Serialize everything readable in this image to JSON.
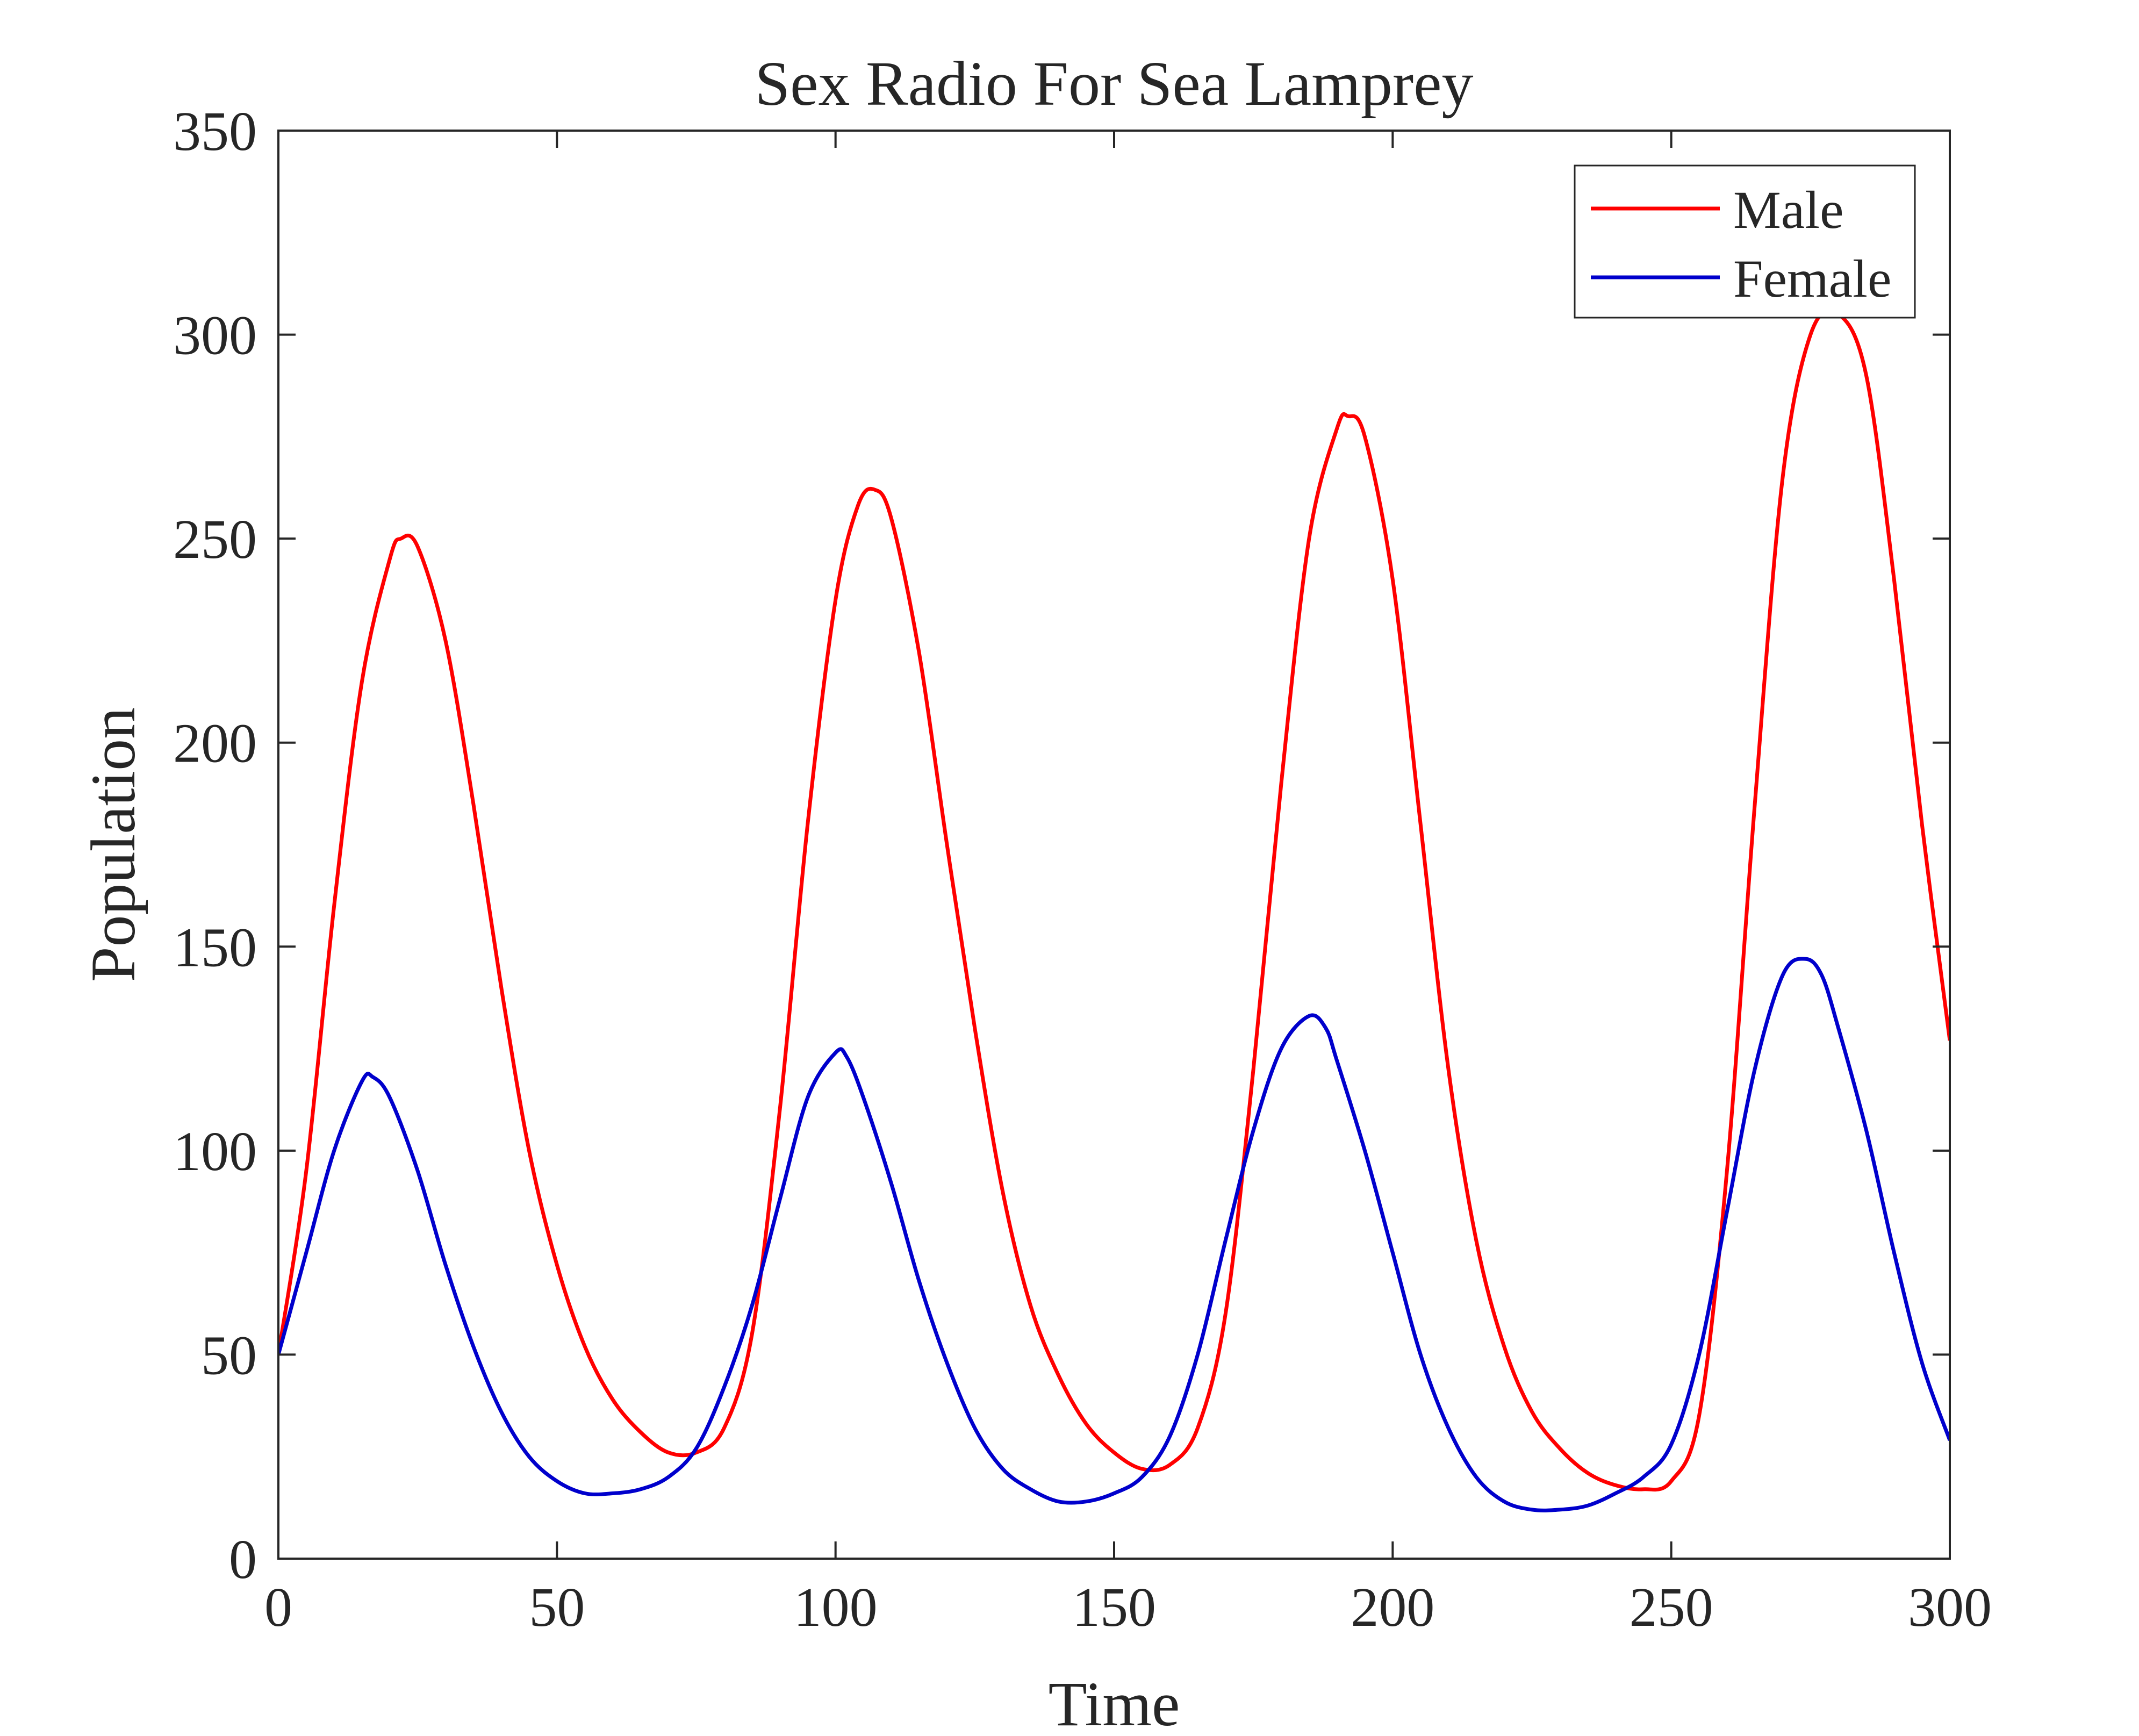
{
  "chart_data": {
    "type": "line",
    "title": "Sex Radio For Sea Lamprey",
    "xlabel": "Time",
    "ylabel": "Population",
    "xlim": [
      0,
      300
    ],
    "ylim": [
      0,
      350
    ],
    "xticks": [
      0,
      50,
      100,
      150,
      200,
      250,
      300
    ],
    "yticks": [
      0,
      50,
      100,
      150,
      200,
      250,
      300,
      350
    ],
    "grid": false,
    "legend_position": "top-right",
    "series": [
      {
        "name": "Male",
        "color": "#ff0000",
        "points": [
          [
            0,
            50
          ],
          [
            5,
            95
          ],
          [
            10,
            160
          ],
          [
            15,
            215
          ],
          [
            20,
            245
          ],
          [
            22,
            250
          ],
          [
            25,
            248
          ],
          [
            30,
            225
          ],
          [
            35,
            185
          ],
          [
            40,
            140
          ],
          [
            45,
            100
          ],
          [
            50,
            72
          ],
          [
            55,
            52
          ],
          [
            60,
            39
          ],
          [
            65,
            31
          ],
          [
            70,
            26
          ],
          [
            75,
            26
          ],
          [
            80,
            32
          ],
          [
            85,
            55
          ],
          [
            90,
            110
          ],
          [
            95,
            180
          ],
          [
            100,
            235
          ],
          [
            104,
            258
          ],
          [
            107,
            262
          ],
          [
            110,
            255
          ],
          [
            115,
            222
          ],
          [
            120,
            175
          ],
          [
            125,
            130
          ],
          [
            130,
            90
          ],
          [
            135,
            62
          ],
          [
            140,
            45
          ],
          [
            145,
            33
          ],
          [
            150,
            26
          ],
          [
            155,
            22
          ],
          [
            160,
            23
          ],
          [
            165,
            32
          ],
          [
            170,
            60
          ],
          [
            175,
            120
          ],
          [
            180,
            190
          ],
          [
            185,
            250
          ],
          [
            190,
            277
          ],
          [
            192,
            280
          ],
          [
            195,
            275
          ],
          [
            200,
            240
          ],
          [
            205,
            180
          ],
          [
            210,
            120
          ],
          [
            215,
            78
          ],
          [
            220,
            52
          ],
          [
            225,
            36
          ],
          [
            230,
            27
          ],
          [
            235,
            21
          ],
          [
            240,
            18
          ],
          [
            245,
            17
          ],
          [
            250,
            19
          ],
          [
            255,
            35
          ],
          [
            260,
            95
          ],
          [
            265,
            185
          ],
          [
            270,
            265
          ],
          [
            275,
            300
          ],
          [
            280,
            305
          ],
          [
            285,
            290
          ],
          [
            290,
            240
          ],
          [
            295,
            180
          ],
          [
            300,
            127
          ]
        ]
      },
      {
        "name": "Female",
        "color": "#0000cc",
        "points": [
          [
            0,
            50
          ],
          [
            5,
            75
          ],
          [
            10,
            100
          ],
          [
            15,
            117
          ],
          [
            17,
            118
          ],
          [
            20,
            113
          ],
          [
            25,
            95
          ],
          [
            30,
            72
          ],
          [
            35,
            52
          ],
          [
            40,
            36
          ],
          [
            45,
            25
          ],
          [
            50,
            19
          ],
          [
            55,
            16
          ],
          [
            60,
            16
          ],
          [
            65,
            17
          ],
          [
            70,
            20
          ],
          [
            75,
            27
          ],
          [
            80,
            42
          ],
          [
            85,
            62
          ],
          [
            90,
            88
          ],
          [
            95,
            113
          ],
          [
            100,
            124
          ],
          [
            102,
            123
          ],
          [
            105,
            113
          ],
          [
            110,
            92
          ],
          [
            115,
            68
          ],
          [
            120,
            48
          ],
          [
            125,
            32
          ],
          [
            130,
            22
          ],
          [
            135,
            17
          ],
          [
            140,
            14
          ],
          [
            145,
            14
          ],
          [
            150,
            16
          ],
          [
            155,
            20
          ],
          [
            160,
            30
          ],
          [
            165,
            50
          ],
          [
            170,
            78
          ],
          [
            175,
            105
          ],
          [
            180,
            125
          ],
          [
            185,
            133
          ],
          [
            188,
            130
          ],
          [
            190,
            122
          ],
          [
            195,
            100
          ],
          [
            200,
            75
          ],
          [
            205,
            50
          ],
          [
            210,
            32
          ],
          [
            215,
            20
          ],
          [
            220,
            14
          ],
          [
            225,
            12
          ],
          [
            230,
            12
          ],
          [
            235,
            13
          ],
          [
            240,
            16
          ],
          [
            245,
            20
          ],
          [
            250,
            28
          ],
          [
            255,
            50
          ],
          [
            260,
            85
          ],
          [
            265,
            120
          ],
          [
            270,
            143
          ],
          [
            274,
            147
          ],
          [
            277,
            143
          ],
          [
            280,
            130
          ],
          [
            285,
            105
          ],
          [
            290,
            75
          ],
          [
            295,
            48
          ],
          [
            300,
            29
          ]
        ]
      }
    ]
  }
}
